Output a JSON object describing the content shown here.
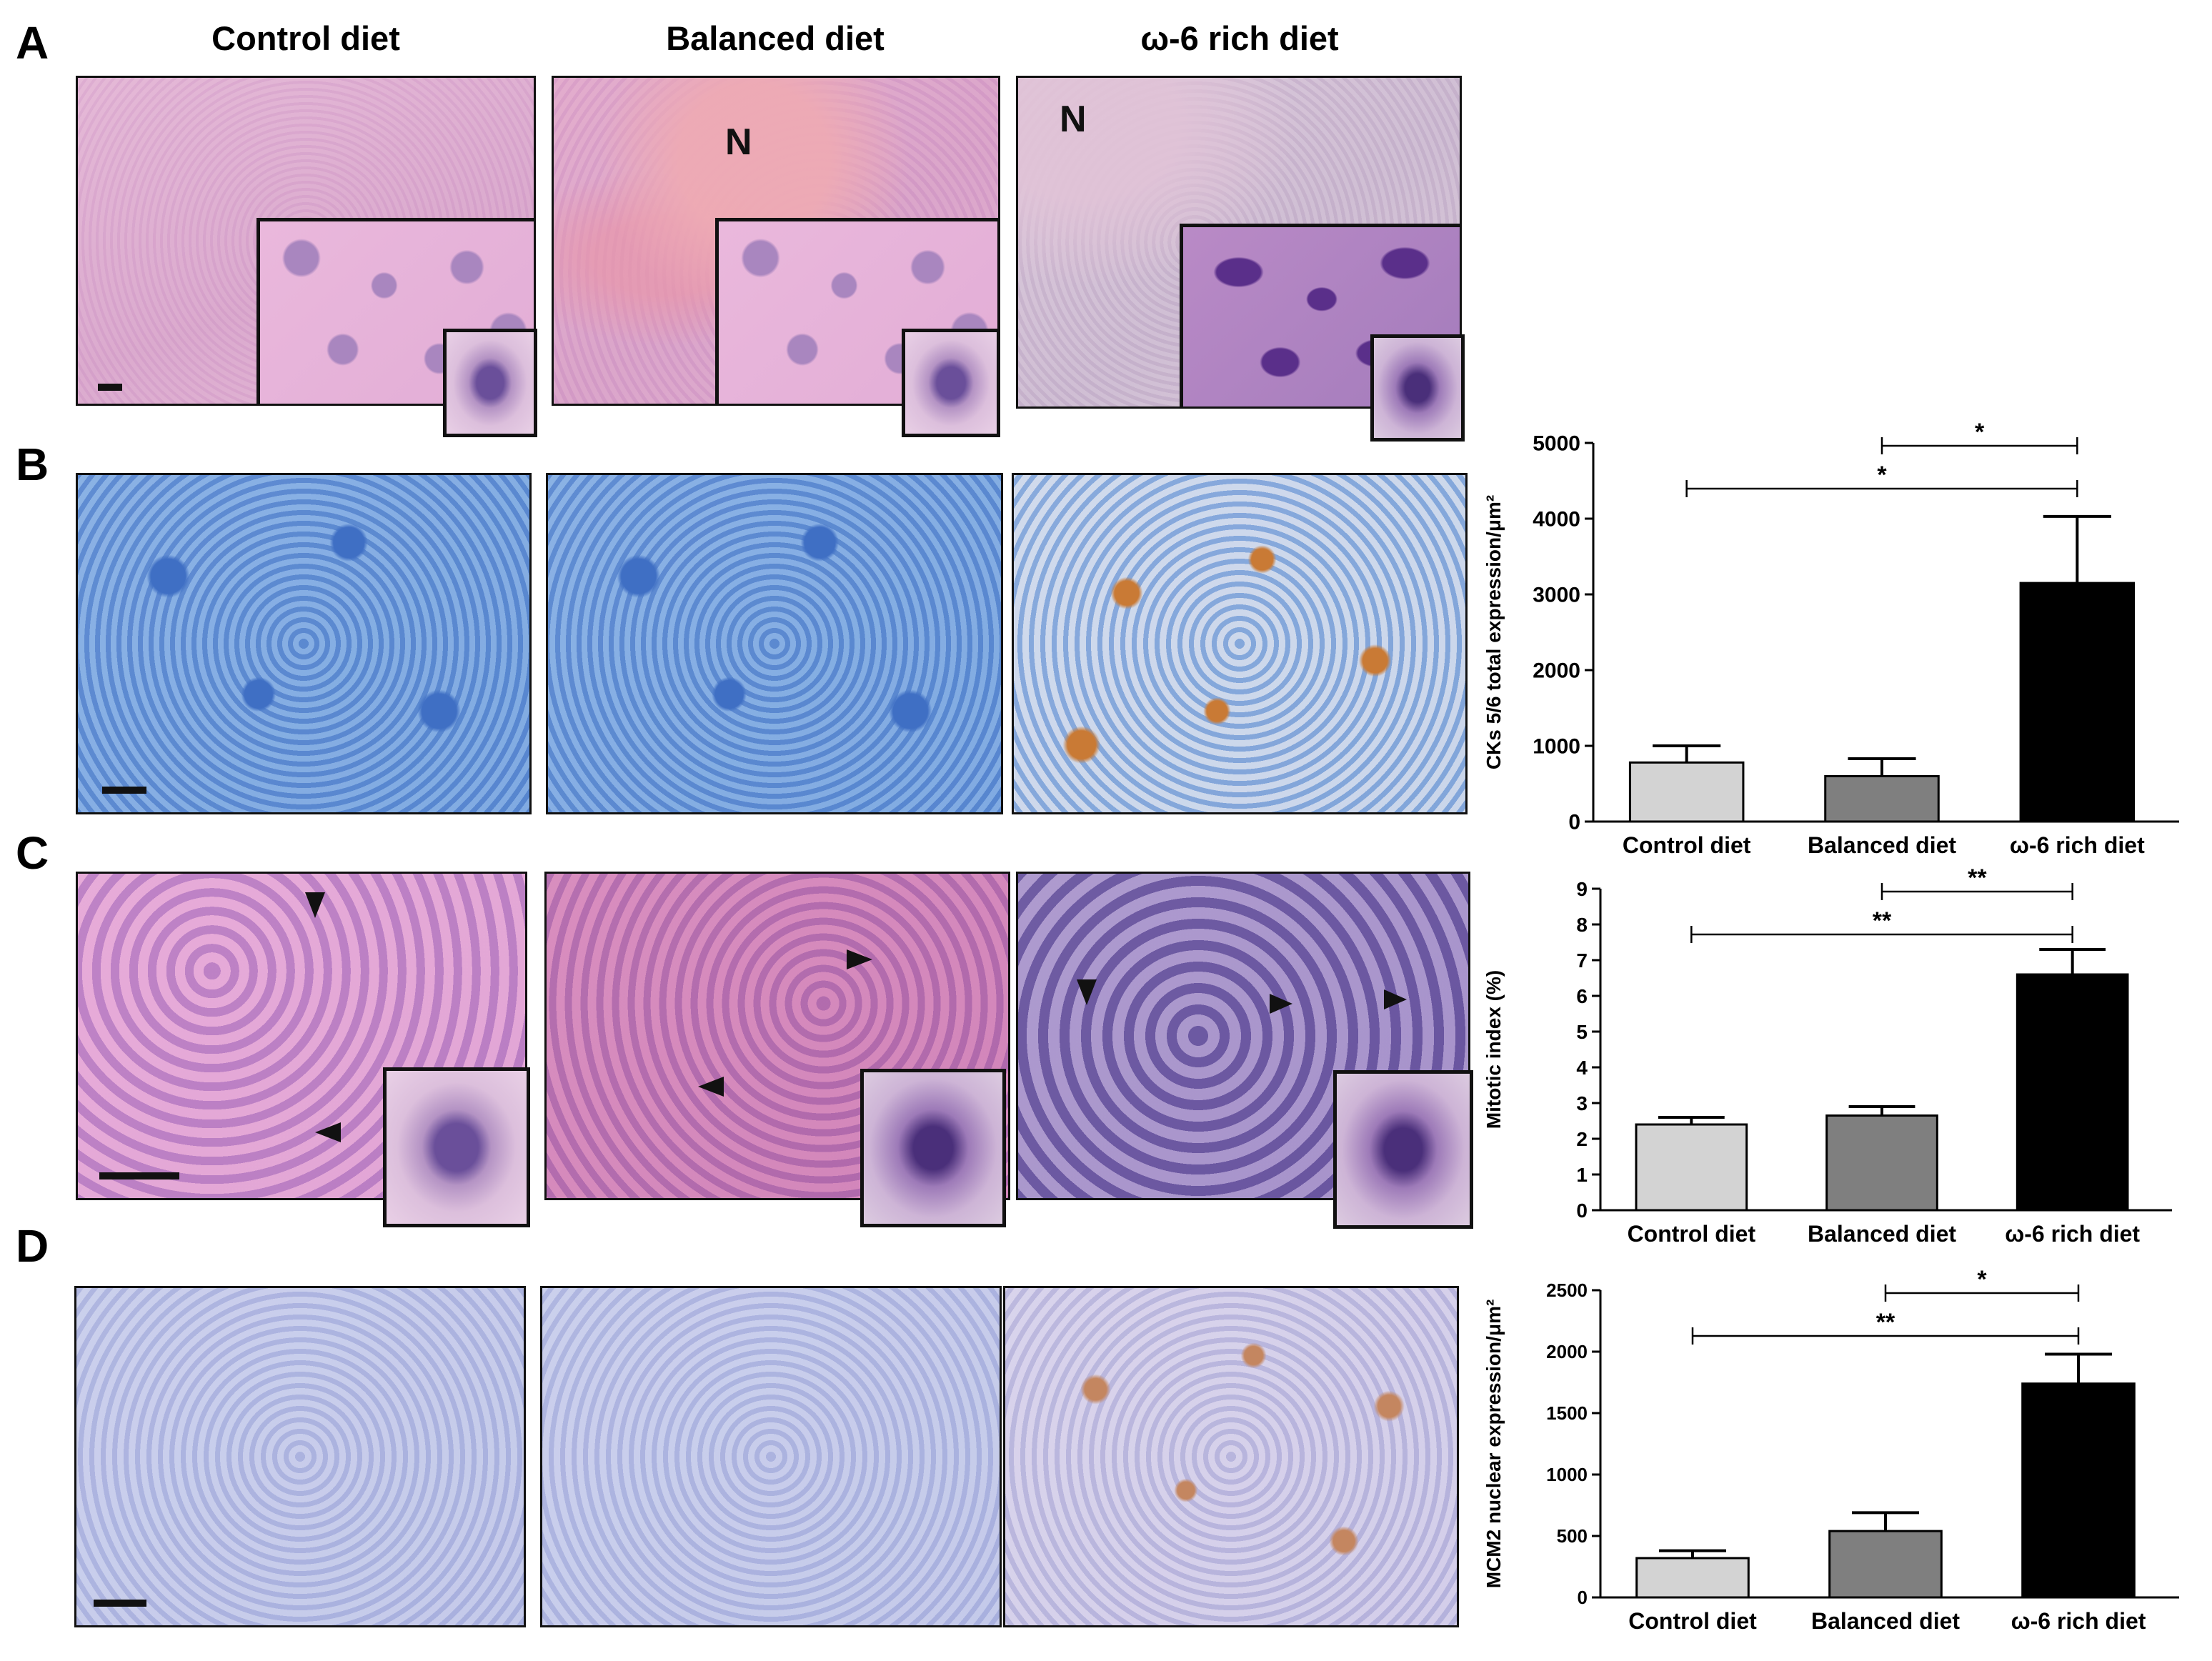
{
  "panel_letters": {
    "a": "A",
    "b": "B",
    "c": "C",
    "d": "D"
  },
  "column_titles": [
    "Control  diet",
    "Balanced diet",
    "ω-6 rich diet"
  ],
  "necrosis_label": "N",
  "colors": {
    "control_bar": "#d3d3d3",
    "balanced_bar": "#7f7f7f",
    "omega6_bar": "#000000"
  },
  "chart_data": [
    {
      "type": "bar",
      "panel": "B",
      "categories": [
        "Control diet",
        "Balanced diet",
        "ω-6 rich diet"
      ],
      "values": [
        780,
        600,
        3150
      ],
      "errors": [
        220,
        230,
        880
      ],
      "ylabel": "CKs 5/6 total expression/μm²",
      "ylim": [
        0,
        5000
      ],
      "yticks": [
        0,
        1000,
        2000,
        3000,
        4000,
        5000
      ],
      "ytick_labels": [
        "0",
        "1000",
        "2000",
        "3000",
        "4000",
        "5000"
      ],
      "significance": [
        {
          "from": 1,
          "to": 2,
          "label": "*"
        },
        {
          "from": 0,
          "to": 2,
          "label": "*"
        }
      ]
    },
    {
      "type": "bar",
      "panel": "C",
      "categories": [
        "Control diet",
        "Balanced diet",
        "ω-6 rich diet"
      ],
      "values": [
        2.4,
        2.65,
        6.6
      ],
      "errors": [
        0.2,
        0.25,
        0.7
      ],
      "ylabel": "Mitotic index (%)",
      "ylim": [
        0,
        9
      ],
      "yticks": [
        0,
        1,
        2,
        3,
        4,
        5,
        6,
        7,
        8,
        9
      ],
      "ytick_labels": [
        "0",
        "1",
        "2",
        "3",
        "4",
        "5",
        "6",
        "7",
        "8",
        "9"
      ],
      "significance": [
        {
          "from": 1,
          "to": 2,
          "label": "**"
        },
        {
          "from": 0,
          "to": 2,
          "label": "**"
        }
      ]
    },
    {
      "type": "bar",
      "panel": "D",
      "categories": [
        "Control diet",
        "Balanced diet",
        "ω-6 rich diet"
      ],
      "values": [
        320,
        540,
        1740
      ],
      "errors": [
        60,
        150,
        240
      ],
      "ylabel": "MCM2 nuclear expression/μm²",
      "ylim": [
        0,
        2500
      ],
      "yticks": [
        0,
        500,
        1000,
        1500,
        2000,
        2500
      ],
      "ytick_labels": [
        "0",
        "500",
        "1000",
        "1500",
        "2000",
        "2500"
      ],
      "significance": [
        {
          "from": 1,
          "to": 2,
          "label": "*"
        },
        {
          "from": 0,
          "to": 2,
          "label": "**"
        }
      ]
    }
  ]
}
